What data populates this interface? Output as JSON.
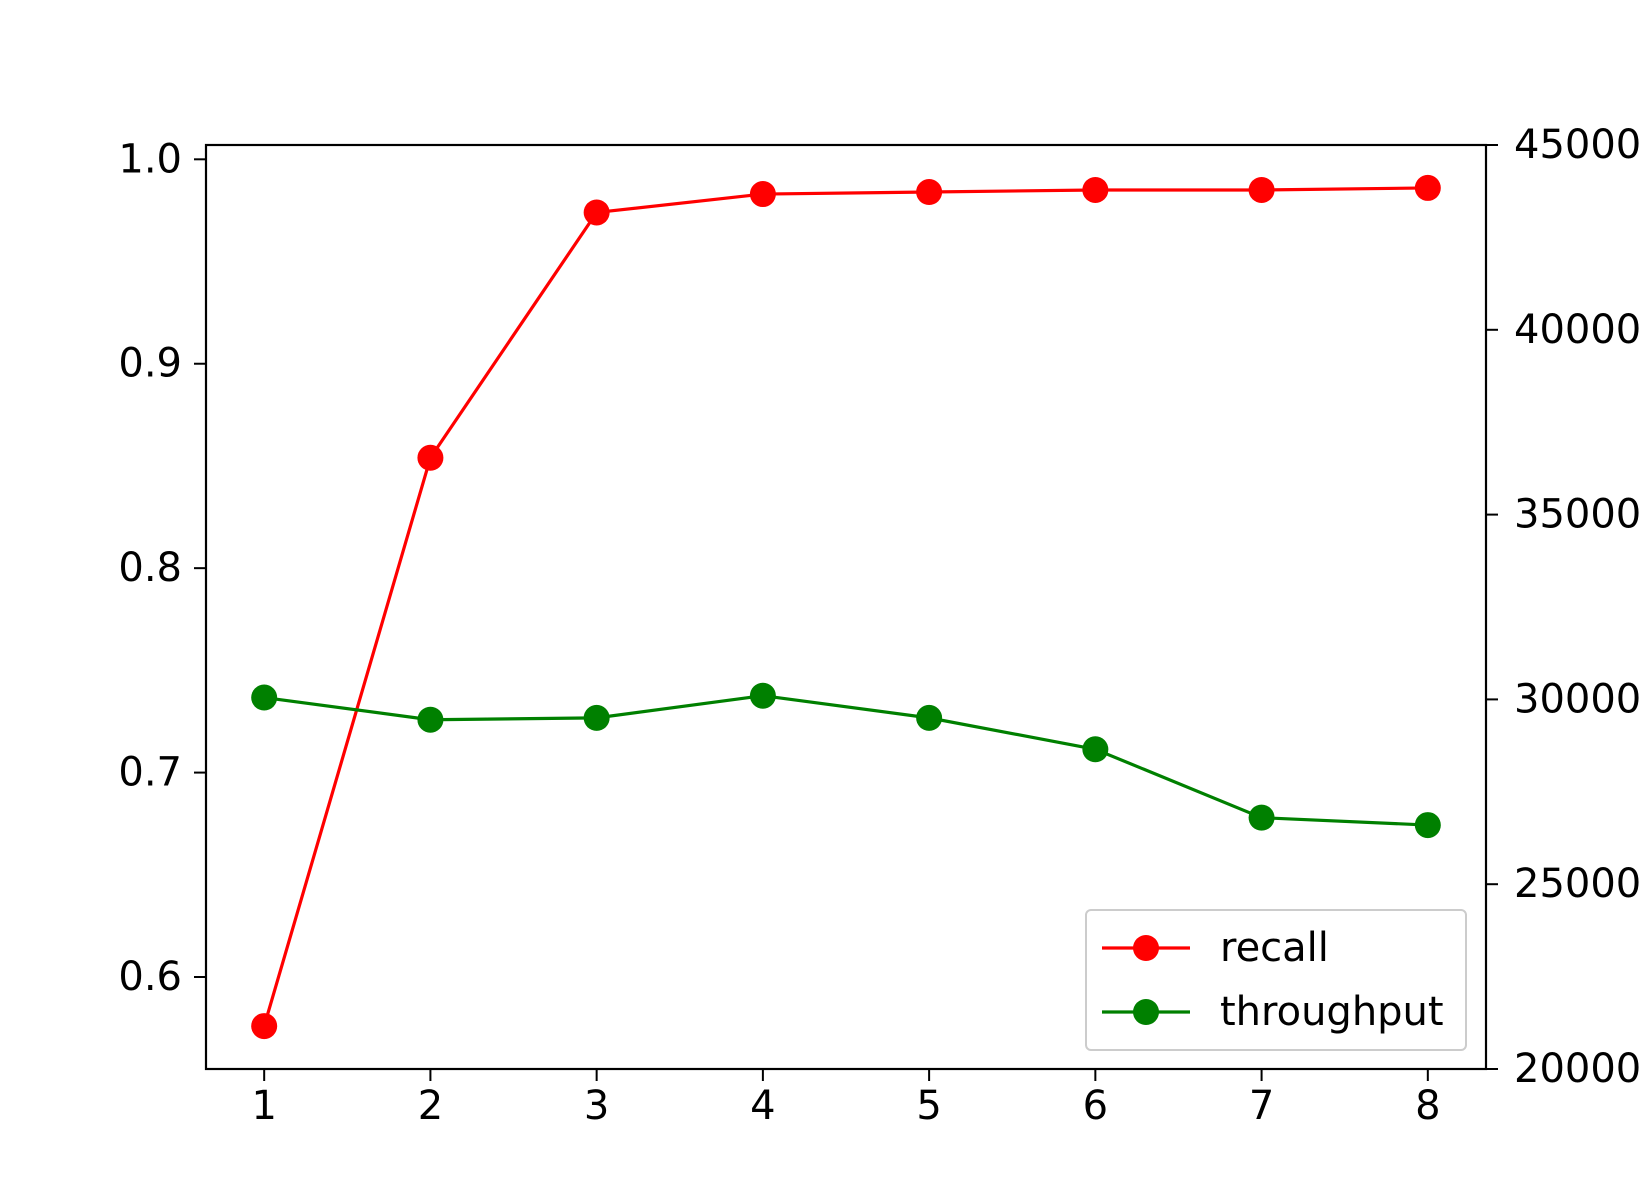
{
  "chart_data": {
    "type": "line",
    "x": [
      1,
      2,
      3,
      4,
      5,
      6,
      7,
      8
    ],
    "xlim": [
      0.65,
      8.35
    ],
    "x_ticks": [
      "1",
      "2",
      "3",
      "4",
      "5",
      "6",
      "7",
      "8"
    ],
    "y_left": {
      "ylim": [
        0.555,
        1.007
      ],
      "ticks": [
        0.6,
        0.7,
        0.8,
        0.9,
        1.0
      ],
      "tick_labels": [
        "0.6",
        "0.7",
        "0.8",
        "0.9",
        "1.0"
      ]
    },
    "y_right": {
      "ylim": [
        20000,
        45000
      ],
      "ticks": [
        20000,
        25000,
        30000,
        35000,
        40000,
        45000
      ],
      "tick_labels": [
        "20000",
        "25000",
        "30000",
        "35000",
        "40000",
        "45000"
      ]
    },
    "series": [
      {
        "name": "recall",
        "axis": "left",
        "color": "#ff0000",
        "marker": "circle",
        "values": [
          0.576,
          0.854,
          0.974,
          0.983,
          0.984,
          0.985,
          0.985,
          0.986
        ]
      },
      {
        "name": "throughput",
        "axis": "right",
        "color": "#008000",
        "marker": "circle",
        "values": [
          30050,
          29450,
          29500,
          30100,
          29500,
          28650,
          26800,
          26600
        ]
      }
    ],
    "legend": {
      "position": "lower-right",
      "entries": [
        "recall",
        "throughput"
      ]
    },
    "grid": false,
    "title": "",
    "xlabel": "",
    "ylabel": ""
  }
}
